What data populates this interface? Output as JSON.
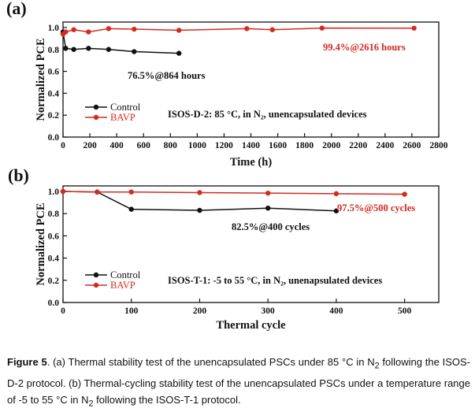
{
  "chart_data": [
    {
      "panel_label": "(a)",
      "type": "line",
      "xlabel": "Time (h)",
      "ylabel": "Normalized PCE",
      "xlim": [
        0,
        2800
      ],
      "ylim": [
        0.0,
        1.05
      ],
      "x_ticks": [
        0,
        200,
        400,
        600,
        800,
        1000,
        1200,
        1400,
        1600,
        1800,
        2000,
        2200,
        2400,
        2600,
        2800
      ],
      "y_ticks": [
        "0.0",
        "0.2",
        "0.4",
        "0.6",
        "0.8",
        "1.0"
      ],
      "legend_placement": "lower-left",
      "annotation_box": "ISOS-D-2: 85 °C, in N₂, unencapsulated devices",
      "series": [
        {
          "name": "Control",
          "color": "#111111",
          "label": "76.5%@864 hours",
          "x": [
            0,
            20,
            80,
            190,
            340,
            530,
            864
          ],
          "y": [
            0.96,
            0.81,
            0.8,
            0.81,
            0.8,
            0.78,
            0.765
          ]
        },
        {
          "name": "BAVP",
          "color": "#d42a20",
          "label": "99.4%@2616 hours",
          "x": [
            0,
            20,
            80,
            190,
            340,
            530,
            864,
            1370,
            1560,
            1930,
            2616
          ],
          "y": [
            0.94,
            0.96,
            0.98,
            0.96,
            0.99,
            0.985,
            0.975,
            0.99,
            0.98,
            0.995,
            0.994
          ]
        }
      ]
    },
    {
      "panel_label": "(b)",
      "type": "line",
      "xlabel": "Thermal cycle",
      "ylabel": "Normalized PCE",
      "xlim": [
        0,
        550
      ],
      "ylim": [
        0.0,
        1.05
      ],
      "x_ticks": [
        0,
        100,
        200,
        300,
        400,
        500
      ],
      "y_ticks": [
        "0.0",
        "0.2",
        "0.4",
        "0.6",
        "0.8",
        "1.0"
      ],
      "legend_placement": "lower-left",
      "annotation_box": "ISOS-T-1: -5 to 55 °C, in N₂, unenapsulated devices",
      "series": [
        {
          "name": "Control",
          "color": "#111111",
          "label": "82.5%@400 cycles",
          "x": [
            0,
            50,
            100,
            200,
            300,
            400
          ],
          "y": [
            1.0,
            0.995,
            0.84,
            0.83,
            0.85,
            0.825
          ]
        },
        {
          "name": "BAVP",
          "color": "#d42a20",
          "label": "97.5%@500 cycles",
          "x": [
            0,
            50,
            100,
            200,
            300,
            400,
            500
          ],
          "y": [
            1.0,
            0.995,
            0.995,
            0.99,
            0.985,
            0.98,
            0.975
          ]
        }
      ]
    }
  ],
  "caption": {
    "figure_label": "Figure 5",
    "text_html": ". (a) Thermal stability test of the unencapsulated PSCs under 85 °C in N<sub>2</sub> following the ISOS-D-2 protocol. (b) Thermal-cycling stability test of the unencapsulated PSCs under a temperature range of -5 to 55 °C in N<sub>2</sub> following the ISOS-T-1 protocol."
  }
}
